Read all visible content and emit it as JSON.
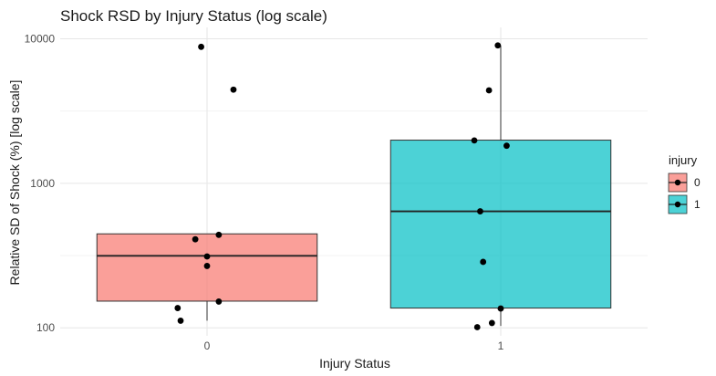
{
  "chart_data": {
    "type": "boxplot",
    "title": "Shock RSD by Injury Status (log scale)",
    "xlabel": "Injury Status",
    "ylabel": "Relative SD of Shock (%) [log scale]",
    "y_scale": "log10",
    "ylim": [
      88,
      12000
    ],
    "y_ticks": [
      100,
      1000,
      10000
    ],
    "y_tick_labels": [
      "100",
      "1000",
      "10000"
    ],
    "categories": [
      "0",
      "1"
    ],
    "grid": true,
    "legend": {
      "title": "injury",
      "position": "right",
      "items": [
        {
          "label": "0",
          "color": "#F8766D"
        },
        {
          "label": "1",
          "color": "#00BFC4"
        }
      ]
    },
    "boxes": [
      {
        "category": "0",
        "color": "#F8766D",
        "whisker_low": 112,
        "q1": 153,
        "median": 315,
        "q3": 447,
        "whisker_high": 447
      },
      {
        "category": "1",
        "color": "#00BFC4",
        "whisker_low": 103,
        "q1": 137,
        "median": 640,
        "q3": 1990,
        "whisker_high": 9000
      }
    ],
    "points": [
      {
        "category": "0",
        "jitter": -0.02,
        "y": 8800
      },
      {
        "category": "0",
        "jitter": 0.09,
        "y": 4450
      },
      {
        "category": "0",
        "jitter": -0.04,
        "y": 410
      },
      {
        "category": "0",
        "jitter": 0.04,
        "y": 440
      },
      {
        "category": "0",
        "jitter": 0.0,
        "y": 312
      },
      {
        "category": "0",
        "jitter": 0.0,
        "y": 268
      },
      {
        "category": "0",
        "jitter": 0.04,
        "y": 152
      },
      {
        "category": "0",
        "jitter": -0.1,
        "y": 137
      },
      {
        "category": "0",
        "jitter": -0.09,
        "y": 112
      },
      {
        "category": "1",
        "jitter": -0.01,
        "y": 9000
      },
      {
        "category": "1",
        "jitter": -0.04,
        "y": 4400
      },
      {
        "category": "1",
        "jitter": -0.09,
        "y": 1980
      },
      {
        "category": "1",
        "jitter": 0.02,
        "y": 1820
      },
      {
        "category": "1",
        "jitter": -0.07,
        "y": 640
      },
      {
        "category": "1",
        "jitter": -0.06,
        "y": 286
      },
      {
        "category": "1",
        "jitter": 0.0,
        "y": 136
      },
      {
        "category": "1",
        "jitter": -0.03,
        "y": 108
      },
      {
        "category": "1",
        "jitter": -0.08,
        "y": 101
      }
    ]
  }
}
